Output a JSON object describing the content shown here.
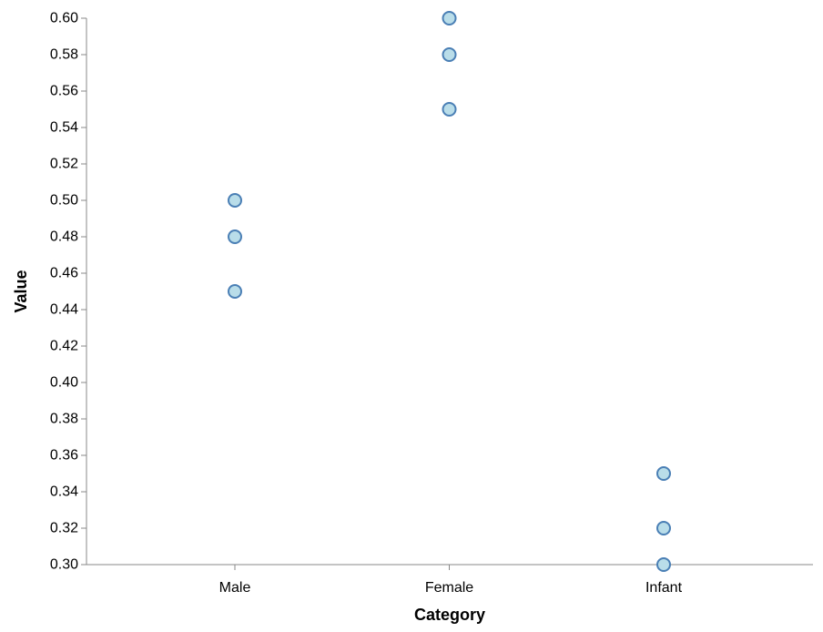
{
  "chart_data": {
    "type": "scatter",
    "title": "",
    "xlabel": "Category",
    "ylabel": "Value",
    "categories": [
      "Male",
      "Female",
      "Infant"
    ],
    "ylim": [
      0.3,
      0.6
    ],
    "yticks": [
      "0.30",
      "0.32",
      "0.34",
      "0.36",
      "0.38",
      "0.40",
      "0.42",
      "0.44",
      "0.46",
      "0.48",
      "0.50",
      "0.52",
      "0.54",
      "0.56",
      "0.58",
      "0.60"
    ],
    "points": [
      {
        "category": "Male",
        "value": 0.5
      },
      {
        "category": "Male",
        "value": 0.48
      },
      {
        "category": "Male",
        "value": 0.45
      },
      {
        "category": "Female",
        "value": 0.6
      },
      {
        "category": "Female",
        "value": 0.58
      },
      {
        "category": "Female",
        "value": 0.55
      },
      {
        "category": "Infant",
        "value": 0.35
      },
      {
        "category": "Infant",
        "value": 0.32
      },
      {
        "category": "Infant",
        "value": 0.3
      }
    ],
    "grid": false,
    "colors": {
      "point_fill": "#b9dde9",
      "point_stroke": "#4a7fb5",
      "axis": "#888888"
    }
  }
}
